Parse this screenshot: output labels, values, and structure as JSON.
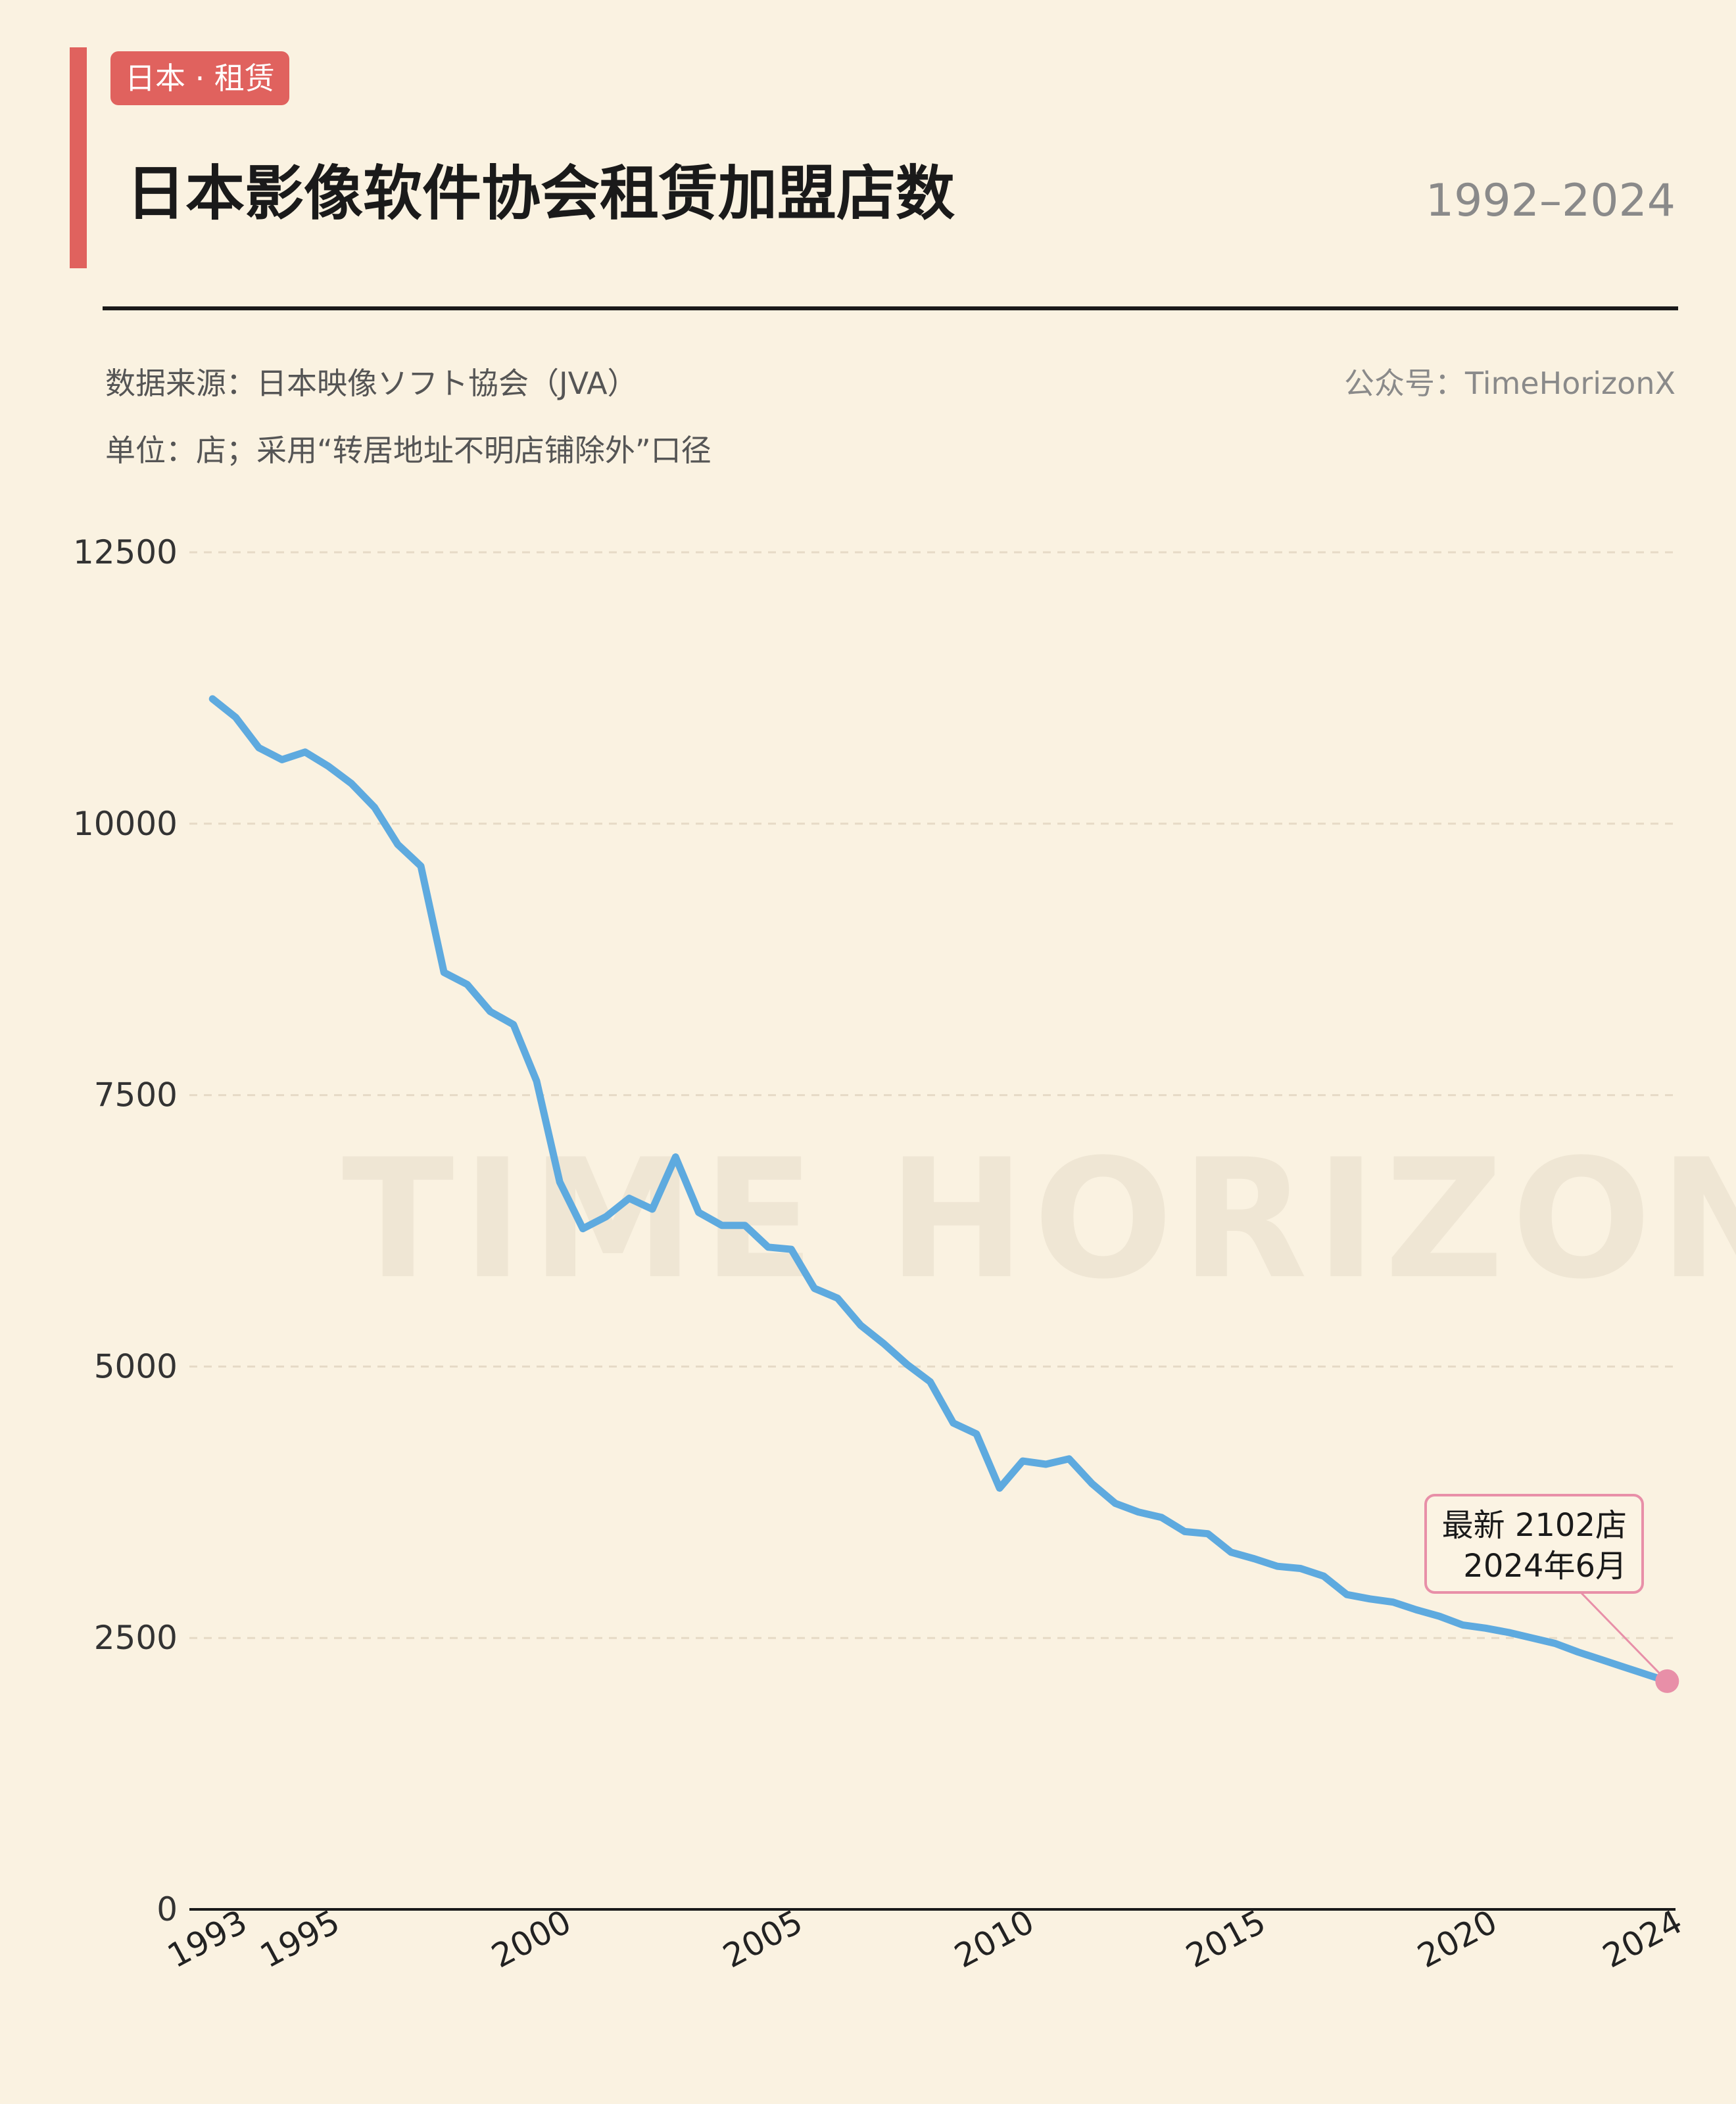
{
  "header": {
    "tag": "日本 · 租赁",
    "title": "日本影像软件协会租赁加盟店数",
    "year_range": "1992–2024",
    "source": "数据来源：日本映像ソフト協会（JVA）",
    "unit": "单位：店；采用“转居地址不明店铺除外”口径",
    "account": "公众号：TimeHorizonX"
  },
  "watermark": "TIME HORIZON",
  "colors": {
    "accent": "#e0625e",
    "line": "#5eaadf",
    "highlight": "#e88fa8"
  },
  "chart_data": {
    "type": "line",
    "ylim": [
      0,
      12500
    ],
    "yticks": [
      0,
      2500,
      5000,
      7500,
      10000,
      12500
    ],
    "xlim": [
      1992.5,
      2024.6
    ],
    "xtick_labels": [
      "1993",
      "1995",
      "2000",
      "2005",
      "2010",
      "2015",
      "2020",
      "2024"
    ],
    "grid": true,
    "series": [
      {
        "points": [
          [
            1993.0,
            11150
          ],
          [
            1993.5,
            10980
          ],
          [
            1994.0,
            10700
          ],
          [
            1994.5,
            10590
          ],
          [
            1995.0,
            10660
          ],
          [
            1995.5,
            10530
          ],
          [
            1996.0,
            10370
          ],
          [
            1996.5,
            10150
          ],
          [
            1997.0,
            9810
          ],
          [
            1997.5,
            9610
          ],
          [
            1998.0,
            8630
          ],
          [
            1998.5,
            8520
          ],
          [
            1999.0,
            8270
          ],
          [
            1999.5,
            8150
          ],
          [
            2000.0,
            7630
          ],
          [
            2000.5,
            6700
          ],
          [
            2001.0,
            6270
          ],
          [
            2001.5,
            6380
          ],
          [
            2002.0,
            6550
          ],
          [
            2002.5,
            6450
          ],
          [
            2003.0,
            6930
          ],
          [
            2003.5,
            6420
          ],
          [
            2004.0,
            6300
          ],
          [
            2004.5,
            6300
          ],
          [
            2005.0,
            6100
          ],
          [
            2005.5,
            6080
          ],
          [
            2006.0,
            5720
          ],
          [
            2006.5,
            5630
          ],
          [
            2007.0,
            5380
          ],
          [
            2007.5,
            5210
          ],
          [
            2008.0,
            5020
          ],
          [
            2008.5,
            4860
          ],
          [
            2009.0,
            4480
          ],
          [
            2009.5,
            4380
          ],
          [
            2010.0,
            3880
          ],
          [
            2010.5,
            4130
          ],
          [
            2011.0,
            4100
          ],
          [
            2011.5,
            4150
          ],
          [
            2012.0,
            3920
          ],
          [
            2012.5,
            3740
          ],
          [
            2013.0,
            3660
          ],
          [
            2013.5,
            3610
          ],
          [
            2014.0,
            3480
          ],
          [
            2014.5,
            3460
          ],
          [
            2015.0,
            3290
          ],
          [
            2015.5,
            3230
          ],
          [
            2016.0,
            3160
          ],
          [
            2016.5,
            3140
          ],
          [
            2017.0,
            3070
          ],
          [
            2017.5,
            2900
          ],
          [
            2018.0,
            2860
          ],
          [
            2018.5,
            2830
          ],
          [
            2019.0,
            2760
          ],
          [
            2019.5,
            2700
          ],
          [
            2020.0,
            2620
          ],
          [
            2020.5,
            2590
          ],
          [
            2021.0,
            2550
          ],
          [
            2021.5,
            2500
          ],
          [
            2022.0,
            2450
          ],
          [
            2022.5,
            2370
          ],
          [
            2023.0,
            2300
          ],
          [
            2023.5,
            2230
          ],
          [
            2024.0,
            2160
          ],
          [
            2024.42,
            2102
          ]
        ]
      }
    ],
    "annotation": {
      "line1": "最新 2102店",
      "line2": "2024年6月",
      "x": 2024.42,
      "y": 2102
    }
  }
}
